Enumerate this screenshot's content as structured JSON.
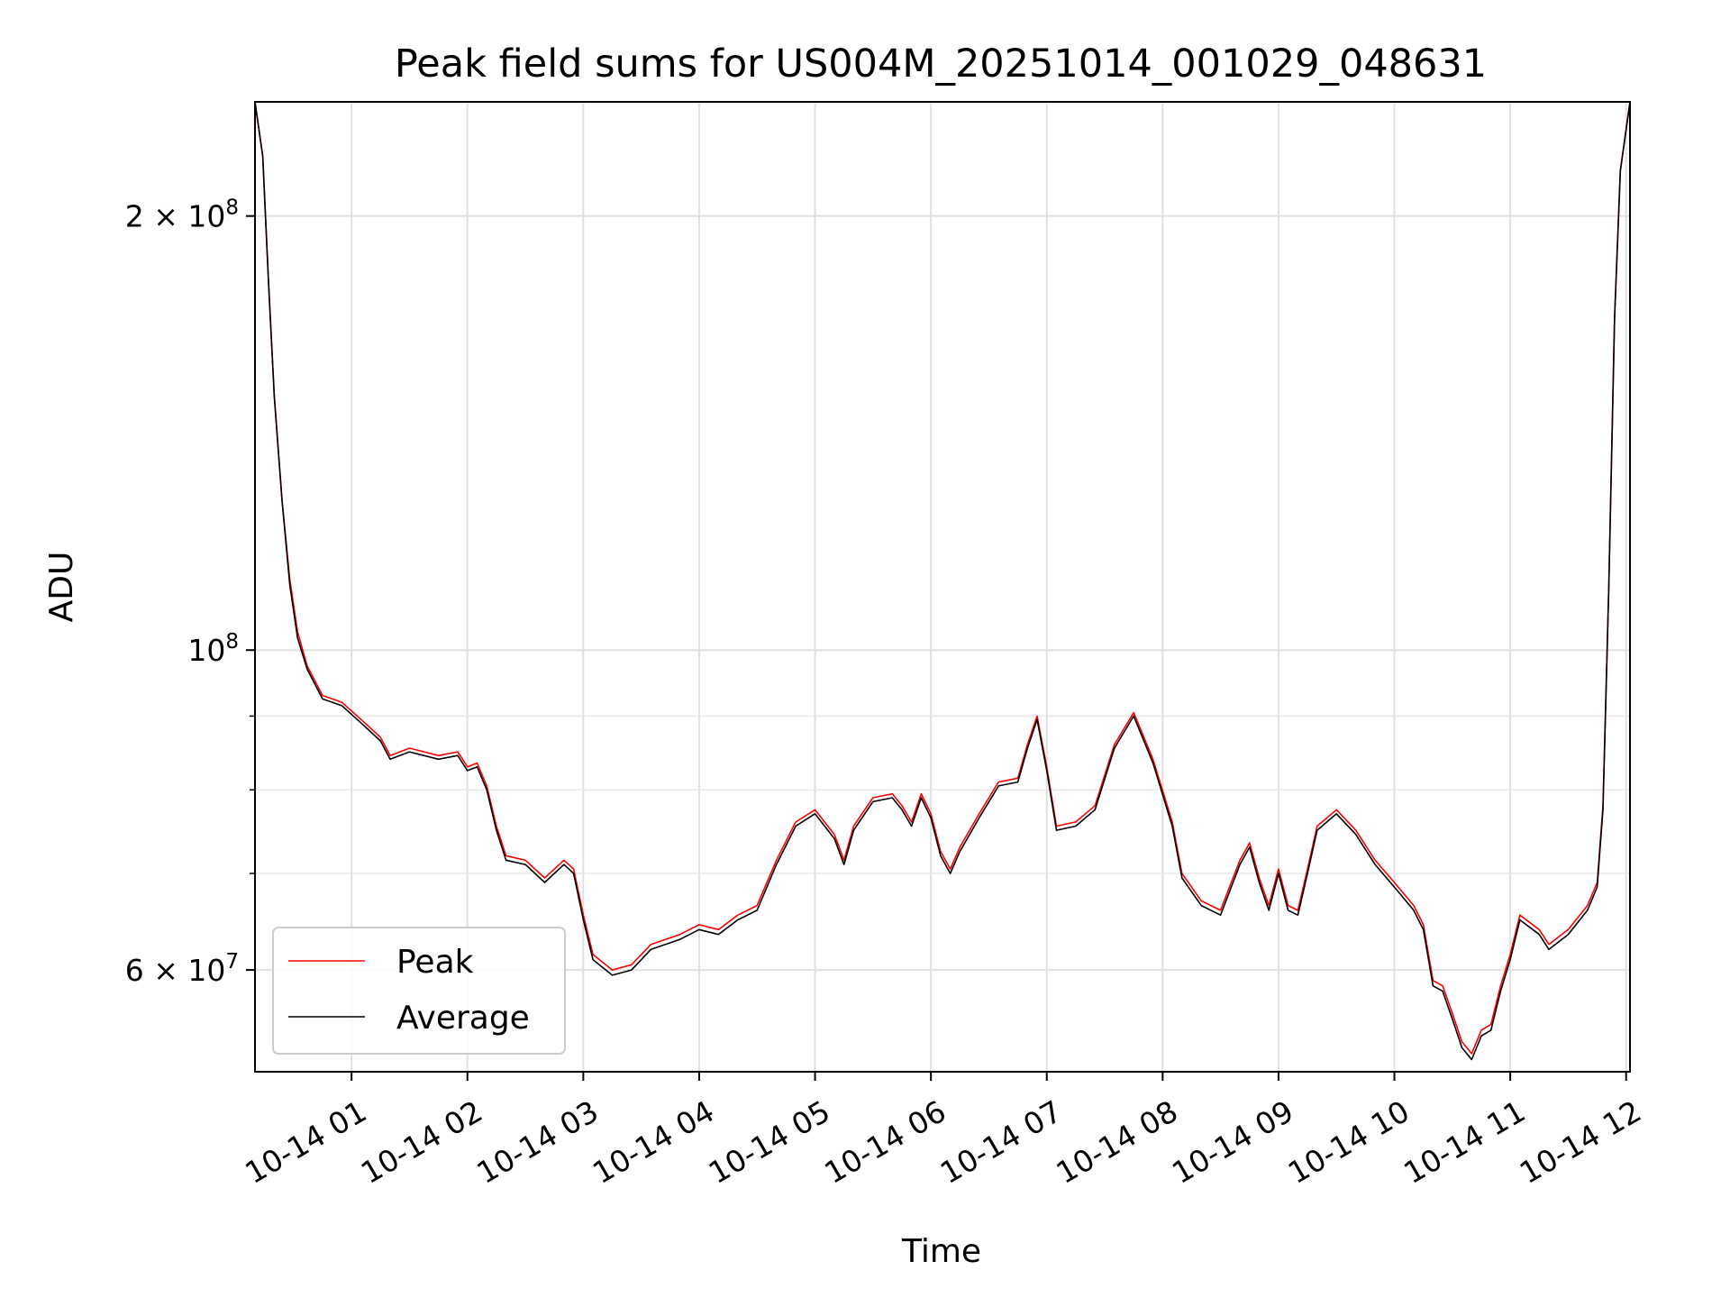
{
  "chart_data": {
    "type": "line",
    "title": "Peak field sums for US004M_20251014_001029_048631",
    "xlabel": "Time",
    "ylabel": "ADU",
    "yscale": "log",
    "xlim": [
      "2025-10-14 00:10",
      "2025-10-14 12:02"
    ],
    "ylim": [
      51000000,
      240000000
    ],
    "grid": true,
    "legend": "lower-left",
    "x_ticks": [
      "2025-10-14 01:00",
      "2025-10-14 02:00",
      "2025-10-14 03:00",
      "2025-10-14 04:00",
      "2025-10-14 05:00",
      "2025-10-14 06:00",
      "2025-10-14 07:00",
      "2025-10-14 08:00",
      "2025-10-14 09:00",
      "2025-10-14 10:00",
      "2025-10-14 11:00",
      "2025-10-14 12:00"
    ],
    "x_tick_labels": [
      "10-14 01",
      "10-14 02",
      "10-14 03",
      "10-14 04",
      "10-14 05",
      "10-14 06",
      "10-14 07",
      "10-14 08",
      "10-14 09",
      "10-14 10",
      "10-14 11",
      "10-14 12"
    ],
    "y_ticks": [
      200000000,
      100000000,
      60000000
    ],
    "y_tick_labels": [
      {
        "base": "2 × 10",
        "exp": "8"
      },
      {
        "base": "10",
        "exp": "8"
      },
      {
        "base": "6 × 10",
        "exp": "7"
      }
    ],
    "series": [
      {
        "name": "Peak",
        "color": "#ff0000",
        "points": [
          [
            "2025-10-14 00:10",
            240000000
          ],
          [
            "2025-10-14 00:14",
            220000000
          ],
          [
            "2025-10-14 00:17",
            180000000
          ],
          [
            "2025-10-14 00:20",
            150000000
          ],
          [
            "2025-10-14 00:24",
            127000000
          ],
          [
            "2025-10-14 00:28",
            112000000
          ],
          [
            "2025-10-14 00:32",
            103000000
          ],
          [
            "2025-10-14 00:37",
            97500000
          ],
          [
            "2025-10-14 00:45",
            93000000
          ],
          [
            "2025-10-14 00:55",
            92000000
          ],
          [
            "2025-10-14 01:05",
            89500000
          ],
          [
            "2025-10-14 01:15",
            87000000
          ],
          [
            "2025-10-14 01:20",
            84500000
          ],
          [
            "2025-10-14 01:30",
            85500000
          ],
          [
            "2025-10-14 01:45",
            84500000
          ],
          [
            "2025-10-14 01:55",
            85000000
          ],
          [
            "2025-10-14 02:00",
            83000000
          ],
          [
            "2025-10-14 02:05",
            83500000
          ],
          [
            "2025-10-14 02:10",
            80500000
          ],
          [
            "2025-10-14 02:15",
            75500000
          ],
          [
            "2025-10-14 02:20",
            72000000
          ],
          [
            "2025-10-14 02:30",
            71500000
          ],
          [
            "2025-10-14 02:40",
            69500000
          ],
          [
            "2025-10-14 02:50",
            71500000
          ],
          [
            "2025-10-14 02:55",
            70500000
          ],
          [
            "2025-10-14 03:00",
            65500000
          ],
          [
            "2025-10-14 03:05",
            61500000
          ],
          [
            "2025-10-14 03:15",
            60000000
          ],
          [
            "2025-10-14 03:25",
            60500000
          ],
          [
            "2025-10-14 03:35",
            62500000
          ],
          [
            "2025-10-14 03:50",
            63500000
          ],
          [
            "2025-10-14 04:00",
            64500000
          ],
          [
            "2025-10-14 04:10",
            64000000
          ],
          [
            "2025-10-14 04:20",
            65500000
          ],
          [
            "2025-10-14 04:30",
            66500000
          ],
          [
            "2025-10-14 04:40",
            71500000
          ],
          [
            "2025-10-14 04:50",
            76000000
          ],
          [
            "2025-10-14 05:00",
            77500000
          ],
          [
            "2025-10-14 05:10",
            74500000
          ],
          [
            "2025-10-14 05:15",
            71500000
          ],
          [
            "2025-10-14 05:20",
            75500000
          ],
          [
            "2025-10-14 05:30",
            79000000
          ],
          [
            "2025-10-14 05:40",
            79500000
          ],
          [
            "2025-10-14 05:45",
            78000000
          ],
          [
            "2025-10-14 05:50",
            76000000
          ],
          [
            "2025-10-14 05:55",
            79500000
          ],
          [
            "2025-10-14 06:00",
            77000000
          ],
          [
            "2025-10-14 06:05",
            72500000
          ],
          [
            "2025-10-14 06:10",
            70500000
          ],
          [
            "2025-10-14 06:15",
            73000000
          ],
          [
            "2025-10-14 06:25",
            77000000
          ],
          [
            "2025-10-14 06:35",
            81000000
          ],
          [
            "2025-10-14 06:45",
            81500000
          ],
          [
            "2025-10-14 06:50",
            86000000
          ],
          [
            "2025-10-14 06:55",
            90000000
          ],
          [
            "2025-10-14 07:00",
            83000000
          ],
          [
            "2025-10-14 07:05",
            75500000
          ],
          [
            "2025-10-14 07:15",
            76000000
          ],
          [
            "2025-10-14 07:25",
            78000000
          ],
          [
            "2025-10-14 07:35",
            86000000
          ],
          [
            "2025-10-14 07:45",
            90500000
          ],
          [
            "2025-10-14 07:55",
            84000000
          ],
          [
            "2025-10-14 08:05",
            76000000
          ],
          [
            "2025-10-14 08:10",
            70000000
          ],
          [
            "2025-10-14 08:20",
            67000000
          ],
          [
            "2025-10-14 08:30",
            66000000
          ],
          [
            "2025-10-14 08:40",
            71500000
          ],
          [
            "2025-10-14 08:45",
            73500000
          ],
          [
            "2025-10-14 08:50",
            69500000
          ],
          [
            "2025-10-14 08:55",
            66500000
          ],
          [
            "2025-10-14 09:00",
            70500000
          ],
          [
            "2025-10-14 09:05",
            66500000
          ],
          [
            "2025-10-14 09:10",
            66000000
          ],
          [
            "2025-10-14 09:15",
            70500000
          ],
          [
            "2025-10-14 09:20",
            75500000
          ],
          [
            "2025-10-14 09:30",
            77500000
          ],
          [
            "2025-10-14 09:40",
            75000000
          ],
          [
            "2025-10-14 09:50",
            71500000
          ],
          [
            "2025-10-14 10:00",
            69000000
          ],
          [
            "2025-10-14 10:10",
            66500000
          ],
          [
            "2025-10-14 10:15",
            64500000
          ],
          [
            "2025-10-14 10:20",
            59000000
          ],
          [
            "2025-10-14 10:25",
            58500000
          ],
          [
            "2025-10-14 10:30",
            56000000
          ],
          [
            "2025-10-14 10:35",
            53500000
          ],
          [
            "2025-10-14 10:40",
            52500000
          ],
          [
            "2025-10-14 10:45",
            54500000
          ],
          [
            "2025-10-14 10:50",
            55000000
          ],
          [
            "2025-10-14 10:55",
            58500000
          ],
          [
            "2025-10-14 11:00",
            61500000
          ],
          [
            "2025-10-14 11:05",
            65500000
          ],
          [
            "2025-10-14 11:15",
            64000000
          ],
          [
            "2025-10-14 11:20",
            62500000
          ],
          [
            "2025-10-14 11:30",
            64000000
          ],
          [
            "2025-10-14 11:40",
            66500000
          ],
          [
            "2025-10-14 11:45",
            69000000
          ],
          [
            "2025-10-14 11:48",
            78000000
          ],
          [
            "2025-10-14 11:51",
            110000000
          ],
          [
            "2025-10-14 11:54",
            170000000
          ],
          [
            "2025-10-14 11:57",
            215000000
          ],
          [
            "2025-10-14 12:02",
            240000000
          ]
        ]
      },
      {
        "name": "Average",
        "color": "#000000",
        "points": [
          [
            "2025-10-14 00:10",
            240000000
          ],
          [
            "2025-10-14 00:14",
            220000000
          ],
          [
            "2025-10-14 00:17",
            180000000
          ],
          [
            "2025-10-14 00:20",
            150000000
          ],
          [
            "2025-10-14 00:24",
            127000000
          ],
          [
            "2025-10-14 00:28",
            111000000
          ],
          [
            "2025-10-14 00:32",
            102000000
          ],
          [
            "2025-10-14 00:37",
            97000000
          ],
          [
            "2025-10-14 00:45",
            92500000
          ],
          [
            "2025-10-14 00:55",
            91500000
          ],
          [
            "2025-10-14 01:05",
            89000000
          ],
          [
            "2025-10-14 01:15",
            86500000
          ],
          [
            "2025-10-14 01:20",
            84000000
          ],
          [
            "2025-10-14 01:30",
            85000000
          ],
          [
            "2025-10-14 01:45",
            84000000
          ],
          [
            "2025-10-14 01:55",
            84500000
          ],
          [
            "2025-10-14 02:00",
            82500000
          ],
          [
            "2025-10-14 02:05",
            83000000
          ],
          [
            "2025-10-14 02:10",
            80000000
          ],
          [
            "2025-10-14 02:15",
            75000000
          ],
          [
            "2025-10-14 02:20",
            71500000
          ],
          [
            "2025-10-14 02:30",
            71000000
          ],
          [
            "2025-10-14 02:40",
            69000000
          ],
          [
            "2025-10-14 02:50",
            71000000
          ],
          [
            "2025-10-14 02:55",
            70000000
          ],
          [
            "2025-10-14 03:00",
            65000000
          ],
          [
            "2025-10-14 03:05",
            61000000
          ],
          [
            "2025-10-14 03:15",
            59500000
          ],
          [
            "2025-10-14 03:25",
            60000000
          ],
          [
            "2025-10-14 03:35",
            62000000
          ],
          [
            "2025-10-14 03:50",
            63000000
          ],
          [
            "2025-10-14 04:00",
            64000000
          ],
          [
            "2025-10-14 04:10",
            63500000
          ],
          [
            "2025-10-14 04:20",
            65000000
          ],
          [
            "2025-10-14 04:30",
            66000000
          ],
          [
            "2025-10-14 04:40",
            71000000
          ],
          [
            "2025-10-14 04:50",
            75500000
          ],
          [
            "2025-10-14 05:00",
            77000000
          ],
          [
            "2025-10-14 05:10",
            74000000
          ],
          [
            "2025-10-14 05:15",
            71000000
          ],
          [
            "2025-10-14 05:20",
            75000000
          ],
          [
            "2025-10-14 05:30",
            78500000
          ],
          [
            "2025-10-14 05:40",
            79000000
          ],
          [
            "2025-10-14 05:45",
            77500000
          ],
          [
            "2025-10-14 05:50",
            75500000
          ],
          [
            "2025-10-14 05:55",
            79000000
          ],
          [
            "2025-10-14 06:00",
            76500000
          ],
          [
            "2025-10-14 06:05",
            72000000
          ],
          [
            "2025-10-14 06:10",
            70000000
          ],
          [
            "2025-10-14 06:15",
            72500000
          ],
          [
            "2025-10-14 06:25",
            76500000
          ],
          [
            "2025-10-14 06:35",
            80500000
          ],
          [
            "2025-10-14 06:45",
            81000000
          ],
          [
            "2025-10-14 06:50",
            85500000
          ],
          [
            "2025-10-14 06:55",
            89500000
          ],
          [
            "2025-10-14 07:00",
            82500000
          ],
          [
            "2025-10-14 07:05",
            75000000
          ],
          [
            "2025-10-14 07:15",
            75500000
          ],
          [
            "2025-10-14 07:25",
            77500000
          ],
          [
            "2025-10-14 07:35",
            85500000
          ],
          [
            "2025-10-14 07:45",
            90000000
          ],
          [
            "2025-10-14 07:55",
            83500000
          ],
          [
            "2025-10-14 08:05",
            75500000
          ],
          [
            "2025-10-14 08:10",
            69500000
          ],
          [
            "2025-10-14 08:20",
            66500000
          ],
          [
            "2025-10-14 08:30",
            65500000
          ],
          [
            "2025-10-14 08:40",
            71000000
          ],
          [
            "2025-10-14 08:45",
            73000000
          ],
          [
            "2025-10-14 08:50",
            69000000
          ],
          [
            "2025-10-14 08:55",
            66000000
          ],
          [
            "2025-10-14 09:00",
            70000000
          ],
          [
            "2025-10-14 09:05",
            66000000
          ],
          [
            "2025-10-14 09:10",
            65500000
          ],
          [
            "2025-10-14 09:15",
            70000000
          ],
          [
            "2025-10-14 09:20",
            75000000
          ],
          [
            "2025-10-14 09:30",
            77000000
          ],
          [
            "2025-10-14 09:40",
            74500000
          ],
          [
            "2025-10-14 09:50",
            71000000
          ],
          [
            "2025-10-14 10:00",
            68500000
          ],
          [
            "2025-10-14 10:10",
            66000000
          ],
          [
            "2025-10-14 10:15",
            64000000
          ],
          [
            "2025-10-14 10:20",
            58500000
          ],
          [
            "2025-10-14 10:25",
            58000000
          ],
          [
            "2025-10-14 10:30",
            55500000
          ],
          [
            "2025-10-14 10:35",
            53000000
          ],
          [
            "2025-10-14 10:40",
            52000000
          ],
          [
            "2025-10-14 10:45",
            54000000
          ],
          [
            "2025-10-14 10:50",
            54500000
          ],
          [
            "2025-10-14 10:55",
            58000000
          ],
          [
            "2025-10-14 11:00",
            61000000
          ],
          [
            "2025-10-14 11:05",
            65000000
          ],
          [
            "2025-10-14 11:15",
            63500000
          ],
          [
            "2025-10-14 11:20",
            62000000
          ],
          [
            "2025-10-14 11:30",
            63500000
          ],
          [
            "2025-10-14 11:40",
            66000000
          ],
          [
            "2025-10-14 11:45",
            68500000
          ],
          [
            "2025-10-14 11:48",
            77500000
          ],
          [
            "2025-10-14 11:51",
            110000000
          ],
          [
            "2025-10-14 11:54",
            170000000
          ],
          [
            "2025-10-14 11:57",
            215000000
          ],
          [
            "2025-10-14 12:02",
            240000000
          ]
        ]
      }
    ]
  }
}
